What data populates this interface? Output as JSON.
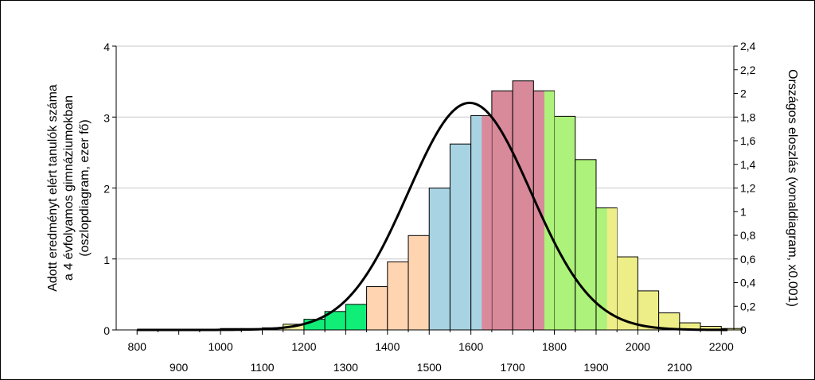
{
  "chart_data": {
    "type": "bar",
    "title": "",
    "ylabel_left": [
      "Adott eredményt elért tanulók száma",
      "a 4 évfolyamos gimnáziumokban",
      "(oszlopdiagram, ezer fő)"
    ],
    "ylabel_right": "Országos eloszlás (vonaldiagram, x0.001)",
    "xlim": [
      750,
      2230
    ],
    "ylim_left": [
      0,
      4
    ],
    "ylim_right": [
      0,
      2.4
    ],
    "yticks_left": [
      "0",
      "1",
      "2",
      "3",
      "4"
    ],
    "yticks_right": [
      "0",
      "0,2",
      "0,4",
      "0,6",
      "0,8",
      "1",
      "1,2",
      "1,4",
      "1,6",
      "1,8",
      "2",
      "2,2",
      "2,4"
    ],
    "xticks_upper": [
      "800",
      "1000",
      "1200",
      "1400",
      "1600",
      "1800",
      "2000",
      "2200"
    ],
    "xticks_lower": [
      "900",
      "1100",
      "1300",
      "1500",
      "1700",
      "1900",
      "2100"
    ],
    "grid": true,
    "bin_width": 50,
    "bars": [
      {
        "x": 775,
        "value": 0.0,
        "color": "#eeee99"
      },
      {
        "x": 825,
        "value": 0.0,
        "color": "#eeee99"
      },
      {
        "x": 875,
        "value": 0.0,
        "color": "#eeee99"
      },
      {
        "x": 925,
        "value": 0.0,
        "color": "#eeee99"
      },
      {
        "x": 975,
        "value": 0.0,
        "color": "#eeee99"
      },
      {
        "x": 1025,
        "value": 0.02,
        "color": "#eeee99"
      },
      {
        "x": 1075,
        "value": 0.02,
        "color": "#eeee99"
      },
      {
        "x": 1125,
        "value": 0.03,
        "color": "#eeee99"
      },
      {
        "x": 1175,
        "value": 0.08,
        "color": "#eeee99"
      },
      {
        "x": 1225,
        "value": 0.15,
        "color": "#11ee77"
      },
      {
        "x": 1275,
        "value": 0.26,
        "color": "#11ee77"
      },
      {
        "x": 1325,
        "value": 0.36,
        "color": "#11ee77"
      },
      {
        "x": 1375,
        "value": 0.61,
        "color": "#ffd4b0"
      },
      {
        "x": 1425,
        "value": 0.96,
        "color": "#ffd4b0"
      },
      {
        "x": 1475,
        "value": 1.33,
        "color": "#ffd4b0"
      },
      {
        "x": 1525,
        "value": 2.0,
        "color": "#a8d3e2"
      },
      {
        "x": 1575,
        "value": 2.62,
        "color": "#a8d3e2"
      },
      {
        "x": 1625,
        "value": 3.02,
        "color": "#a8d3e2"
      },
      {
        "x": 1675,
        "value": 3.37,
        "color": "#d8899a"
      },
      {
        "x": 1725,
        "value": 3.51,
        "color": "#d8899a"
      },
      {
        "x": 1775,
        "value": 3.37,
        "color": "#d8899a"
      },
      {
        "x": 1825,
        "value": 3.01,
        "color": "#adf27a"
      },
      {
        "x": 1875,
        "value": 2.4,
        "color": "#adf27a"
      },
      {
        "x": 1925,
        "value": 1.72,
        "color": "#adf27a"
      },
      {
        "x": 1975,
        "value": 1.03,
        "color": "#eeee88"
      },
      {
        "x": 2025,
        "value": 0.55,
        "color": "#eeee88"
      },
      {
        "x": 2075,
        "value": 0.24,
        "color": "#eeee88"
      },
      {
        "x": 2125,
        "value": 0.1,
        "color": "#eeee88"
      },
      {
        "x": 2175,
        "value": 0.05,
        "color": "#eeee88"
      },
      {
        "x": 2225,
        "value": 0.02,
        "color": "#eeee88"
      }
    ],
    "highlight_segments": [
      {
        "x0": 1625,
        "x1": 1650,
        "value": 3.02,
        "color": "#d8899a"
      },
      {
        "x0": 1775,
        "x1": 1800,
        "value": 3.37,
        "color": "#adf27a"
      },
      {
        "x0": 1925,
        "x1": 1950,
        "value": 1.72,
        "color": "#eeee88"
      }
    ],
    "line": {
      "name": "Országos eloszlás",
      "axis": "right",
      "color": "#000000",
      "distribution": "normal",
      "mean": 1597,
      "sd": 147,
      "peak": 1.92,
      "x_range": [
        800,
        2215
      ]
    }
  }
}
